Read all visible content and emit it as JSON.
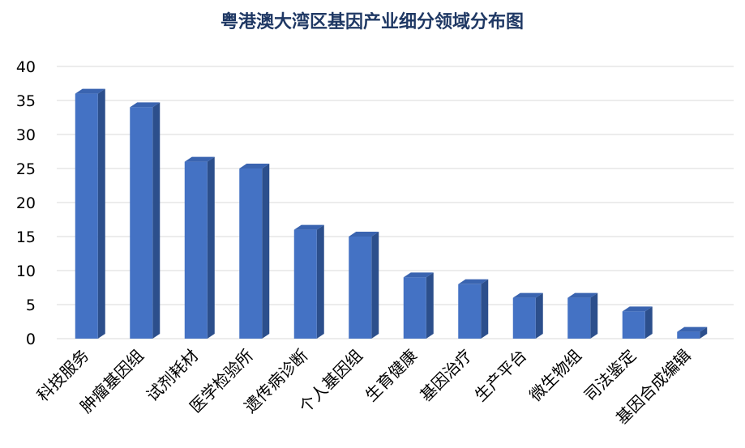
{
  "chart_data": {
    "type": "bar",
    "title": "粤港澳大湾区基因产业细分领域分布图",
    "xlabel": "",
    "ylabel": "",
    "categories": [
      "科技服务",
      "肿瘤基因组",
      "试剂耗材",
      "医学检验所",
      "遗传病诊断",
      "个人基因组",
      "生育健康",
      "基因治疗",
      "生产平台",
      "微生物组",
      "司法鉴定",
      "基因合成编辑"
    ],
    "values": [
      36,
      34,
      26,
      25,
      16,
      15,
      9,
      8,
      6,
      6,
      4,
      1
    ],
    "ylim": [
      0,
      40
    ],
    "yticks": [
      0,
      5,
      10,
      15,
      20,
      25,
      30,
      35,
      40
    ],
    "grid": true,
    "legend": "none",
    "bar_style": "3d",
    "colors": {
      "bar_front": "#4472c4",
      "bar_side": "#2c4f8c",
      "bar_top": "#3a64b0",
      "title": "#1f3864",
      "grid": "#d9d9d9"
    }
  }
}
